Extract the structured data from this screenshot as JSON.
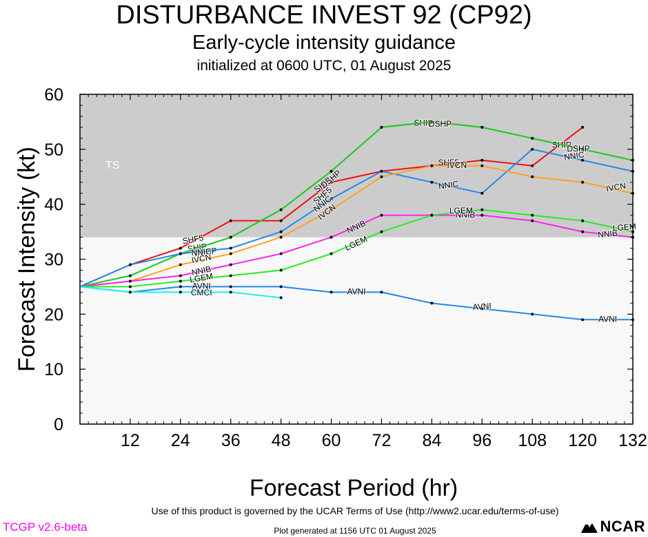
{
  "header": {
    "title": "DISTURBANCE INVEST 92 (CP92)",
    "subtitle": "Early-cycle intensity guidance",
    "init": "initialized at 0600 UTC, 01 August 2025"
  },
  "footer": {
    "terms": "Use of this product is governed by the UCAR Terms of Use (http://www2.ucar.edu/terms-of-use)",
    "version": "TCGP v2.6-beta",
    "generated": "Plot generated at 1156 UTC   01 August 2025",
    "logo": "NCAR"
  },
  "chart_data": {
    "type": "line",
    "xlabel": "Forecast Period (hr)",
    "ylabel": "Forecast Intensity (kt)",
    "xlim": [
      0,
      132
    ],
    "ylim": [
      0,
      60
    ],
    "xticks": [
      12,
      24,
      36,
      48,
      60,
      72,
      84,
      96,
      108,
      120,
      132
    ],
    "yticks": [
      0,
      10,
      20,
      30,
      40,
      50,
      60
    ],
    "band": {
      "label": "TS",
      "from": 34,
      "to": 60,
      "color": "#cccccc"
    },
    "plot_bg": "#f8f8f8",
    "series": [
      {
        "name": "SHF5",
        "color": "#ee1111",
        "x": [
          0,
          12,
          24,
          36,
          48,
          60,
          72,
          84,
          96,
          108,
          120
        ],
        "y": [
          25,
          29,
          32,
          37,
          37,
          44,
          46,
          47,
          48,
          47,
          54
        ],
        "labels": [
          {
            "x": 27,
            "y": 33.5,
            "angle": -10
          },
          {
            "x": 58,
            "y": 41.5,
            "angle": -40
          },
          {
            "x": 88,
            "y": 47.5,
            "angle": 0
          }
        ]
      },
      {
        "name": "SHIP",
        "color": "#22cc22",
        "x": [
          0,
          12,
          24,
          36,
          48,
          60,
          72,
          84,
          96,
          108,
          120,
          132
        ],
        "y": [
          25,
          27,
          31,
          34,
          39,
          46,
          54,
          55,
          54,
          52,
          50,
          48
        ],
        "labels": [
          {
            "x": 28,
            "y": 32,
            "angle": -8
          },
          {
            "x": 58,
            "y": 43.5,
            "angle": -40
          },
          {
            "x": 82,
            "y": 54.7,
            "angle": 0
          },
          {
            "x": 115,
            "y": 50.7,
            "angle": 0
          }
        ]
      },
      {
        "name": "DSHP",
        "color": "#22cc22",
        "x": [
          0,
          12,
          24,
          36,
          48,
          60,
          72,
          84,
          96,
          108,
          120,
          132
        ],
        "y": [
          25,
          27,
          31,
          34,
          39,
          46,
          54,
          55,
          54,
          52,
          50,
          48
        ],
        "labels": [
          {
            "x": 30,
            "y": 31.2,
            "angle": -8
          },
          {
            "x": 60,
            "y": 44.5,
            "angle": -40
          },
          {
            "x": 86,
            "y": 54.5,
            "angle": 0
          },
          {
            "x": 119,
            "y": 50,
            "angle": 0
          }
        ]
      },
      {
        "name": "NNIC",
        "color": "#2288ee",
        "x": [
          0,
          12,
          24,
          36,
          48,
          60,
          72,
          84,
          96,
          108,
          120,
          132
        ],
        "y": [
          25,
          29,
          31,
          32,
          35,
          41,
          46,
          44,
          42,
          50,
          48,
          46
        ],
        "labels": [
          {
            "x": 29,
            "y": 31.2,
            "angle": -5
          },
          {
            "x": 58,
            "y": 40,
            "angle": -38
          },
          {
            "x": 88,
            "y": 43.4,
            "angle": -8
          },
          {
            "x": 118,
            "y": 48.7,
            "angle": -8
          }
        ]
      },
      {
        "name": "IVCN",
        "color": "#ffa020",
        "x": [
          0,
          12,
          24,
          36,
          48,
          60,
          72,
          84,
          96,
          108,
          120,
          132
        ],
        "y": [
          25,
          26,
          29,
          31,
          34,
          39,
          45,
          47,
          47,
          45,
          44,
          42
        ],
        "labels": [
          {
            "x": 29,
            "y": 30,
            "angle": -10
          },
          {
            "x": 59,
            "y": 38.5,
            "angle": -38
          },
          {
            "x": 90,
            "y": 47,
            "angle": 0
          },
          {
            "x": 128,
            "y": 43,
            "angle": -10
          }
        ]
      },
      {
        "name": "NNIB",
        "color": "#ff22ee",
        "x": [
          0,
          12,
          24,
          36,
          48,
          60,
          72,
          84,
          96,
          108,
          120,
          132
        ],
        "y": [
          25,
          26,
          27,
          29,
          31,
          34,
          38,
          38,
          38,
          37,
          35,
          34
        ],
        "labels": [
          {
            "x": 29,
            "y": 27.8,
            "angle": -12
          },
          {
            "x": 66,
            "y": 35.8,
            "angle": -25
          },
          {
            "x": 92,
            "y": 38,
            "angle": 0
          },
          {
            "x": 126,
            "y": 34.5,
            "angle": -5
          }
        ]
      },
      {
        "name": "LGEM",
        "color": "#22ee22",
        "x": [
          0,
          12,
          24,
          36,
          48,
          60,
          72,
          84,
          96,
          108,
          120,
          132
        ],
        "y": [
          25,
          25,
          26,
          27,
          28,
          31,
          35,
          38,
          39,
          38,
          37,
          35
        ],
        "labels": [
          {
            "x": 29,
            "y": 26.5,
            "angle": -10
          },
          {
            "x": 66,
            "y": 32.8,
            "angle": -25
          },
          {
            "x": 91,
            "y": 38.7,
            "angle": 0
          },
          {
            "x": 130,
            "y": 35.7,
            "angle": -5
          }
        ]
      },
      {
        "name": "AVNI",
        "color": "#2288ee",
        "x": [
          0,
          12,
          24,
          36,
          48,
          60,
          72,
          84,
          96,
          108,
          120,
          132
        ],
        "y": [
          25,
          24,
          25,
          25,
          25,
          24,
          24,
          22,
          21,
          20,
          19,
          19
        ],
        "labels": [
          {
            "x": 29,
            "y": 25,
            "angle": 0
          },
          {
            "x": 66,
            "y": 24,
            "angle": 0
          },
          {
            "x": 96,
            "y": 21.3,
            "angle": -5
          },
          {
            "x": 126,
            "y": 19,
            "angle": 0
          }
        ]
      },
      {
        "name": "CMCI",
        "color": "#22eeee",
        "x": [
          0,
          12,
          24,
          36,
          48
        ],
        "y": [
          25,
          24,
          24,
          24,
          23
        ],
        "labels": [
          {
            "x": 29,
            "y": 23.8,
            "angle": 0
          }
        ]
      }
    ]
  }
}
